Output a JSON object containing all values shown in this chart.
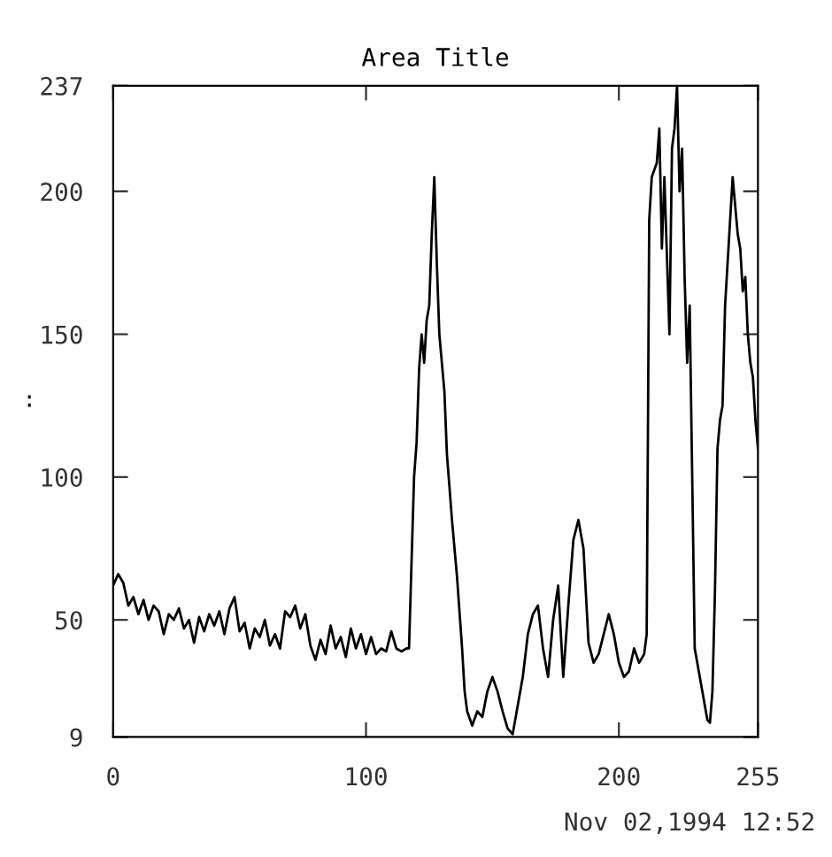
{
  "chart_data": {
    "type": "line",
    "title": "Area Title",
    "ylabel": ":",
    "annotations": [
      "Nov 02,1994 12:52"
    ],
    "xlim": [
      0,
      255
    ],
    "xticks": [
      0,
      100,
      200,
      255
    ],
    "ylim": [
      9,
      237
    ],
    "yticks": [
      9,
      50,
      100,
      150,
      200,
      237
    ],
    "grid": false,
    "legend": false,
    "marker": "none",
    "line_style": "solid",
    "series": [
      {
        "color": "#000000",
        "x": [
          0,
          2,
          4,
          6,
          8,
          10,
          12,
          14,
          16,
          18,
          20,
          22,
          24,
          26,
          28,
          30,
          32,
          34,
          36,
          38,
          40,
          42,
          44,
          46,
          48,
          50,
          52,
          54,
          56,
          58,
          60,
          62,
          64,
          66,
          68,
          70,
          72,
          74,
          76,
          78,
          80,
          82,
          84,
          86,
          88,
          90,
          92,
          94,
          96,
          98,
          100,
          102,
          104,
          106,
          108,
          110,
          112,
          114,
          116,
          117,
          118,
          119,
          120,
          121,
          122,
          123,
          124,
          125,
          126,
          127,
          128,
          129,
          130,
          131,
          132,
          134,
          136,
          138,
          139,
          140,
          142,
          144,
          146,
          148,
          150,
          152,
          154,
          156,
          158,
          160,
          162,
          164,
          166,
          168,
          170,
          172,
          174,
          176,
          178,
          180,
          182,
          184,
          185,
          186,
          188,
          190,
          192,
          194,
          196,
          198,
          200,
          202,
          204,
          206,
          208,
          210,
          211,
          212,
          213,
          215,
          216,
          217,
          218,
          220,
          221,
          222,
          223,
          224,
          225,
          226,
          227,
          228,
          229,
          230,
          231,
          232,
          233,
          234,
          235,
          236,
          237,
          238,
          239,
          240,
          241,
          242,
          243,
          244,
          245,
          246,
          247,
          248,
          249,
          250,
          251,
          252,
          253,
          254,
          255
        ],
        "values": [
          62,
          66,
          63,
          55,
          58,
          52,
          57,
          50,
          55,
          53,
          45,
          52,
          50,
          54,
          47,
          50,
          42,
          51,
          46,
          52,
          48,
          53,
          45,
          54,
          58,
          46,
          49,
          40,
          47,
          44,
          50,
          41,
          45,
          40,
          53,
          51,
          55,
          47,
          52,
          41,
          36,
          43,
          38,
          48,
          40,
          44,
          37,
          47,
          40,
          45,
          38,
          44,
          38,
          40,
          39,
          46,
          40,
          39,
          40,
          40,
          70,
          100,
          112,
          138,
          150,
          140,
          155,
          160,
          185,
          205,
          175,
          150,
          140,
          130,
          108,
          85,
          65,
          40,
          25,
          18,
          13,
          18,
          16,
          25,
          30,
          25,
          18,
          12,
          10,
          20,
          30,
          45,
          52,
          55,
          40,
          30,
          50,
          62,
          30,
          55,
          78,
          85,
          80,
          75,
          42,
          35,
          38,
          45,
          52,
          45,
          35,
          30,
          32,
          40,
          35,
          38,
          45,
          190,
          205,
          210,
          222,
          180,
          205,
          150,
          215,
          222,
          237,
          200,
          215,
          170,
          140,
          160,
          100,
          40,
          35,
          30,
          25,
          20,
          15,
          14,
          25,
          60,
          110,
          120,
          125,
          160,
          175,
          190,
          205,
          195,
          185,
          180,
          165,
          170,
          150,
          140,
          135,
          120,
          110
        ]
      }
    ]
  }
}
